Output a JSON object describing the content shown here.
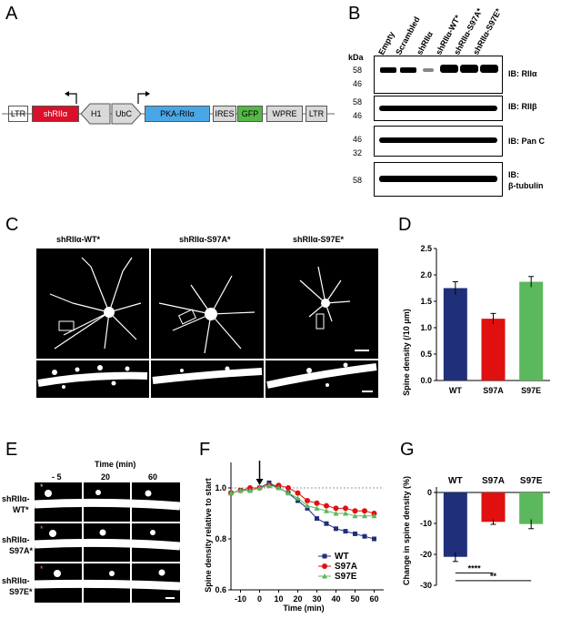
{
  "panels": {
    "A": "A",
    "B": "B",
    "C": "C",
    "D": "D",
    "E": "E",
    "F": "F",
    "G": "G"
  },
  "construct": {
    "boxes": [
      {
        "label": "LTR",
        "color": "#d9d9d9"
      },
      {
        "label": "shRIIα",
        "color": "#d9102a"
      },
      {
        "label": "H1",
        "color": "#d9d9d9"
      },
      {
        "label": "UbC",
        "color": "#d9d9d9"
      },
      {
        "label": "PKA-RIIα",
        "color": "#4aa7e6"
      },
      {
        "label": "IRES",
        "color": "#d9d9d9"
      },
      {
        "label": "GFP",
        "color": "#54b847"
      },
      {
        "label": "WPRE",
        "color": "#d9d9d9"
      },
      {
        "label": "LTR",
        "color": "#d9d9d9"
      }
    ]
  },
  "western": {
    "kda_label": "kDa",
    "lanes": [
      "Empty",
      "Scrambled",
      "shRIIα",
      "shRIIα-WT*",
      "shRIIα-S97A*",
      "shRIIα-S97E*"
    ],
    "blots": [
      {
        "markers": [
          "58",
          "46"
        ],
        "label": "IB: RIIα"
      },
      {
        "markers": [
          "58",
          "46"
        ],
        "label": "IB: RIIβ"
      },
      {
        "markers": [
          "46",
          "32"
        ],
        "label": "IB: Pan C"
      },
      {
        "markers": [
          "58"
        ],
        "label": "IB:",
        "label2": "β-tubulin"
      }
    ]
  },
  "images_c": [
    "shRIIα-WT*",
    "shRIIα-S97A*",
    "shRIIα-S97E*"
  ],
  "panel_d": {
    "type": "bar",
    "categories": [
      "WT",
      "S97A",
      "S97E"
    ],
    "values": [
      1.75,
      1.17,
      1.87
    ],
    "errors": [
      0.12,
      0.1,
      0.1
    ],
    "colors": [
      "#1f2f7a",
      "#e01010",
      "#5cb85c"
    ],
    "ylabel": "Spine density (/10 μm)",
    "ylim": [
      0,
      2.5
    ],
    "yticks": [
      "0.0",
      "0.5",
      "1.0",
      "1.5",
      "2.0",
      "2.5"
    ]
  },
  "panel_e": {
    "time_label": "Time (min)",
    "times": [
      "- 5",
      "20",
      "60"
    ],
    "rows": [
      {
        "line1": "shRIIα-",
        "line2": "WT*"
      },
      {
        "line1": "shRIIα-",
        "line2": "S97A*"
      },
      {
        "line1": "shRIIα-",
        "line2": "S97E*"
      }
    ]
  },
  "chart_data": {
    "type": "line",
    "xlabel": "Time (min)",
    "ylabel": "Spine density relative to start",
    "xlim": [
      -15,
      65
    ],
    "ylim": [
      0.6,
      1.1
    ],
    "xticks": [
      "-10",
      "0",
      "10",
      "20",
      "30",
      "40",
      "50",
      "60"
    ],
    "yticks": [
      "0.6",
      "0.8",
      "1.0"
    ],
    "x": [
      -15,
      -10,
      -5,
      0,
      5,
      10,
      15,
      20,
      25,
      30,
      35,
      40,
      45,
      50,
      55,
      60
    ],
    "series": [
      {
        "name": "WT",
        "color": "#1f2f7a",
        "marker": "square",
        "values": [
          0.98,
          0.99,
          0.99,
          1.0,
          1.02,
          1.0,
          0.98,
          0.95,
          0.92,
          0.88,
          0.86,
          0.84,
          0.83,
          0.82,
          0.81,
          0.8
        ]
      },
      {
        "name": "S97A",
        "color": "#e01010",
        "marker": "circle",
        "values": [
          0.98,
          0.99,
          1.0,
          1.0,
          1.01,
          1.01,
          1.0,
          0.98,
          0.95,
          0.94,
          0.93,
          0.92,
          0.92,
          0.91,
          0.91,
          0.9
        ]
      },
      {
        "name": "S97E",
        "color": "#5cb85c",
        "marker": "triangle",
        "values": [
          0.98,
          0.99,
          0.99,
          1.0,
          1.01,
          1.0,
          0.98,
          0.96,
          0.93,
          0.92,
          0.91,
          0.9,
          0.9,
          0.89,
          0.89,
          0.89
        ]
      }
    ],
    "reference_line": 1.0
  },
  "panel_g": {
    "type": "bar",
    "categories": [
      "WT",
      "S97A",
      "S97E"
    ],
    "values": [
      -20.8,
      -9.5,
      -10.2
    ],
    "errors": [
      1.5,
      0.8,
      1.5
    ],
    "colors": [
      "#1f2f7a",
      "#e01010",
      "#5cb85c"
    ],
    "ylabel": "Change in spine density (%)",
    "ylim": [
      -30,
      0
    ],
    "yticks": [
      "0",
      "-10",
      "-20",
      "-30"
    ],
    "sig": [
      "****",
      "**"
    ]
  }
}
